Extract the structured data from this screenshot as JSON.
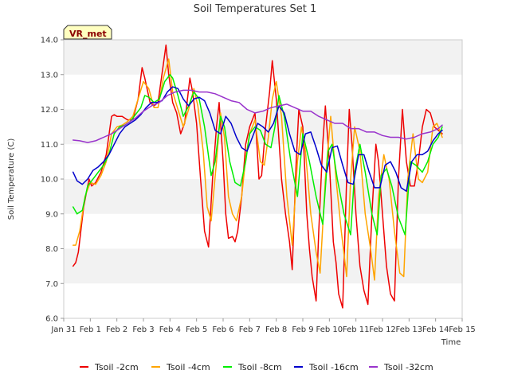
{
  "chart_data": {
    "type": "line",
    "title": "Soil Temperatures Set 1",
    "xlabel": "Time",
    "ylabel": "Soil Temperature (C)",
    "site_label": "VR_met",
    "xlim": [
      0,
      15
    ],
    "ylim": [
      6.0,
      14.0
    ],
    "yticks": [
      6.0,
      7.0,
      8.0,
      9.0,
      10.0,
      11.0,
      12.0,
      13.0,
      14.0
    ],
    "ytick_labels": [
      "6.0",
      "7.0",
      "8.0",
      "9.0",
      "10.0",
      "11.0",
      "12.0",
      "13.0",
      "14.0"
    ],
    "xticks": [
      0,
      1,
      2,
      3,
      4,
      5,
      6,
      7,
      8,
      9,
      10,
      11,
      12,
      13,
      14,
      15
    ],
    "xtick_labels": [
      "Jan 31",
      "Feb 1",
      "Feb 2",
      "Feb 3",
      "Feb 4",
      "Feb 5",
      "Feb 6",
      "Feb 7",
      "Feb 8",
      "Feb 9",
      "Feb 10",
      "Feb 11",
      "Feb 12",
      "Feb 13",
      "Feb 14",
      "Feb 15"
    ],
    "grid_bands": true,
    "legend_position": "bottom",
    "series": [
      {
        "name": "Tsoil -2cm",
        "color": "#ee0000",
        "x": [
          0.35,
          0.45,
          0.55,
          0.75,
          0.95,
          1.05,
          1.2,
          1.4,
          1.6,
          1.8,
          1.9,
          2.0,
          2.2,
          2.4,
          2.6,
          2.8,
          2.95,
          3.05,
          3.25,
          3.4,
          3.55,
          3.75,
          3.85,
          3.95,
          4.1,
          4.25,
          4.4,
          4.55,
          4.75,
          4.85,
          5.0,
          5.15,
          5.3,
          5.45,
          5.6,
          5.75,
          5.85,
          6.0,
          6.1,
          6.2,
          6.35,
          6.45,
          6.55,
          6.7,
          6.85,
          7.0,
          7.2,
          7.35,
          7.45,
          7.6,
          7.75,
          7.85,
          8.0,
          8.2,
          8.35,
          8.5,
          8.6,
          8.75,
          8.85,
          9.0,
          9.15,
          9.25,
          9.35,
          9.5,
          9.6,
          9.75,
          9.85,
          10.0,
          10.15,
          10.25,
          10.35,
          10.5,
          10.65,
          10.75,
          10.85,
          11.0,
          11.15,
          11.3,
          11.45,
          11.6,
          11.75,
          11.85,
          12.0,
          12.15,
          12.3,
          12.45,
          12.6,
          12.75,
          12.9,
          13.05,
          13.2,
          13.35,
          13.5,
          13.65,
          13.8,
          13.95,
          14.1,
          14.25
        ],
        "values": [
          7.5,
          7.6,
          7.9,
          9.2,
          10.0,
          9.8,
          9.9,
          10.2,
          10.7,
          11.8,
          11.85,
          11.8,
          11.8,
          11.7,
          11.7,
          12.3,
          13.2,
          12.9,
          12.2,
          12.1,
          12.2,
          13.3,
          13.85,
          13.0,
          12.2,
          11.9,
          11.3,
          11.6,
          12.9,
          12.5,
          11.6,
          10.0,
          8.5,
          8.05,
          10.0,
          11.5,
          12.2,
          10.5,
          9.0,
          8.3,
          8.35,
          8.2,
          8.5,
          9.5,
          11.0,
          11.5,
          11.9,
          10.0,
          10.1,
          11.5,
          12.5,
          13.4,
          12.3,
          10.0,
          9.0,
          8.2,
          7.4,
          10.5,
          12.0,
          11.5,
          9.0,
          8.0,
          7.2,
          6.5,
          8.5,
          11.0,
          12.1,
          10.5,
          8.2,
          7.6,
          6.7,
          6.3,
          10.0,
          12.0,
          11.0,
          9.0,
          7.5,
          6.8,
          6.4,
          9.0,
          11.0,
          10.5,
          9.0,
          7.5,
          6.7,
          6.5,
          10.0,
          12.0,
          10.5,
          9.8,
          9.8,
          10.5,
          11.5,
          12.0,
          11.9,
          11.5,
          11.4,
          11.3
        ]
      },
      {
        "name": "Tsoil -4cm",
        "color": "#ffa500",
        "x": [
          0.35,
          0.45,
          0.6,
          0.8,
          1.0,
          1.2,
          1.4,
          1.6,
          1.8,
          2.0,
          2.2,
          2.4,
          2.6,
          2.8,
          3.0,
          3.2,
          3.4,
          3.55,
          3.75,
          3.95,
          4.1,
          4.3,
          4.5,
          4.7,
          4.9,
          5.05,
          5.25,
          5.4,
          5.55,
          5.75,
          5.9,
          6.05,
          6.2,
          6.35,
          6.5,
          6.7,
          6.85,
          7.0,
          7.2,
          7.4,
          7.55,
          7.7,
          7.85,
          8.0,
          8.2,
          8.4,
          8.6,
          8.8,
          8.95,
          9.1,
          9.3,
          9.5,
          9.65,
          9.85,
          10.05,
          10.25,
          10.45,
          10.65,
          10.8,
          10.95,
          11.15,
          11.35,
          11.55,
          11.7,
          11.85,
          12.05,
          12.25,
          12.45,
          12.65,
          12.8,
          12.95,
          13.15,
          13.35,
          13.5,
          13.7,
          13.9,
          14.05,
          14.25
        ],
        "values": [
          8.1,
          8.1,
          8.5,
          9.5,
          9.9,
          9.85,
          10.1,
          10.5,
          11.3,
          11.5,
          11.55,
          11.65,
          11.8,
          12.3,
          12.8,
          12.6,
          12.05,
          12.05,
          12.9,
          13.45,
          12.5,
          12.0,
          11.5,
          12.0,
          12.6,
          12.1,
          10.8,
          9.2,
          8.8,
          10.5,
          11.9,
          11.2,
          9.5,
          9.0,
          8.8,
          9.5,
          10.6,
          11.3,
          11.7,
          10.5,
          10.4,
          11.2,
          12.3,
          12.8,
          11.8,
          9.5,
          8.1,
          10.5,
          11.5,
          10.8,
          9.0,
          7.9,
          7.3,
          10.0,
          11.8,
          10.0,
          8.5,
          7.2,
          10.0,
          11.5,
          10.8,
          9.0,
          8.0,
          7.1,
          9.5,
          10.7,
          10.0,
          8.5,
          7.3,
          7.2,
          10.0,
          11.3,
          10.0,
          9.9,
          10.2,
          11.5,
          11.6,
          11.2
        ]
      },
      {
        "name": "Tsoil -8cm",
        "color": "#00ee00",
        "x": [
          0.35,
          0.5,
          0.7,
          0.9,
          1.1,
          1.3,
          1.5,
          1.7,
          1.9,
          2.1,
          2.3,
          2.5,
          2.7,
          2.9,
          3.05,
          3.2,
          3.4,
          3.6,
          3.8,
          4.0,
          4.1,
          4.3,
          4.5,
          4.7,
          4.9,
          5.1,
          5.3,
          5.55,
          5.7,
          5.9,
          6.05,
          6.25,
          6.45,
          6.65,
          6.85,
          7.0,
          7.2,
          7.4,
          7.6,
          7.8,
          7.95,
          8.1,
          8.3,
          8.55,
          8.8,
          9.0,
          9.25,
          9.5,
          9.75,
          9.95,
          10.1,
          10.3,
          10.55,
          10.8,
          10.95,
          11.15,
          11.35,
          11.6,
          11.8,
          11.95,
          12.15,
          12.35,
          12.6,
          12.85,
          13.05,
          13.25,
          13.5,
          13.7,
          13.9,
          14.1,
          14.25
        ],
        "values": [
          9.2,
          9.0,
          9.1,
          9.8,
          10.0,
          10.2,
          10.4,
          10.7,
          11.3,
          11.5,
          11.55,
          11.65,
          11.85,
          12.05,
          12.4,
          12.35,
          12.2,
          12.3,
          12.8,
          13.0,
          12.9,
          12.4,
          11.8,
          12.1,
          12.5,
          12.3,
          11.5,
          10.1,
          10.5,
          11.8,
          11.5,
          10.5,
          9.9,
          9.8,
          10.5,
          11.3,
          11.5,
          11.4,
          11.0,
          10.9,
          11.5,
          12.4,
          11.8,
          10.5,
          9.5,
          11.3,
          10.5,
          9.5,
          8.7,
          10.8,
          11.0,
          10.0,
          9.0,
          8.4,
          10.2,
          11.0,
          10.2,
          9.0,
          8.4,
          10.1,
          10.3,
          9.8,
          8.9,
          8.4,
          10.5,
          10.4,
          10.2,
          10.5,
          11.0,
          11.2,
          11.5
        ]
      },
      {
        "name": "Tsoil -16cm",
        "color": "#0000cc",
        "x": [
          0.35,
          0.5,
          0.7,
          0.9,
          1.1,
          1.3,
          1.5,
          1.7,
          1.9,
          2.1,
          2.3,
          2.5,
          2.7,
          2.9,
          3.1,
          3.3,
          3.5,
          3.7,
          3.9,
          4.1,
          4.3,
          4.5,
          4.7,
          4.9,
          5.1,
          5.3,
          5.5,
          5.7,
          5.9,
          6.1,
          6.3,
          6.5,
          6.7,
          6.9,
          7.1,
          7.3,
          7.5,
          7.7,
          7.9,
          8.1,
          8.3,
          8.5,
          8.7,
          8.9,
          9.1,
          9.3,
          9.5,
          9.7,
          9.9,
          10.1,
          10.3,
          10.5,
          10.7,
          10.9,
          11.1,
          11.3,
          11.5,
          11.7,
          11.9,
          12.1,
          12.3,
          12.5,
          12.7,
          12.9,
          13.1,
          13.3,
          13.5,
          13.7,
          13.9,
          14.1,
          14.25
        ],
        "values": [
          10.2,
          9.95,
          9.85,
          10.0,
          10.25,
          10.35,
          10.5,
          10.7,
          11.0,
          11.3,
          11.5,
          11.6,
          11.7,
          11.85,
          12.05,
          12.2,
          12.2,
          12.25,
          12.5,
          12.65,
          12.6,
          12.3,
          12.1,
          12.3,
          12.35,
          12.25,
          11.9,
          11.4,
          11.3,
          11.8,
          11.6,
          11.2,
          10.9,
          10.8,
          11.2,
          11.6,
          11.5,
          11.35,
          11.6,
          12.1,
          11.9,
          11.3,
          10.8,
          10.7,
          11.3,
          11.35,
          10.9,
          10.4,
          10.2,
          10.9,
          10.95,
          10.4,
          9.9,
          9.85,
          10.7,
          10.7,
          10.2,
          9.75,
          9.75,
          10.4,
          10.5,
          10.2,
          9.75,
          9.65,
          10.5,
          10.7,
          10.7,
          10.8,
          11.1,
          11.3,
          11.4
        ]
      },
      {
        "name": "Tsoil -32cm",
        "color": "#9933cc",
        "x": [
          0.35,
          0.6,
          0.9,
          1.2,
          1.5,
          1.8,
          2.1,
          2.4,
          2.7,
          3.0,
          3.3,
          3.6,
          3.9,
          4.2,
          4.5,
          4.8,
          5.1,
          5.4,
          5.7,
          6.0,
          6.3,
          6.6,
          6.9,
          7.2,
          7.5,
          7.8,
          8.1,
          8.4,
          8.7,
          9.0,
          9.3,
          9.6,
          9.9,
          10.2,
          10.5,
          10.8,
          11.1,
          11.4,
          11.7,
          12.0,
          12.3,
          12.6,
          12.9,
          13.2,
          13.5,
          13.8,
          14.1,
          14.25
        ],
        "values": [
          11.12,
          11.1,
          11.05,
          11.1,
          11.2,
          11.3,
          11.45,
          11.6,
          11.75,
          11.95,
          12.1,
          12.2,
          12.4,
          12.5,
          12.55,
          12.55,
          12.5,
          12.5,
          12.45,
          12.35,
          12.25,
          12.2,
          12.0,
          11.9,
          11.95,
          12.05,
          12.1,
          12.15,
          12.05,
          11.95,
          11.95,
          11.8,
          11.7,
          11.6,
          11.6,
          11.45,
          11.45,
          11.35,
          11.35,
          11.25,
          11.2,
          11.2,
          11.15,
          11.2,
          11.3,
          11.35,
          11.45,
          11.55
        ]
      }
    ]
  }
}
